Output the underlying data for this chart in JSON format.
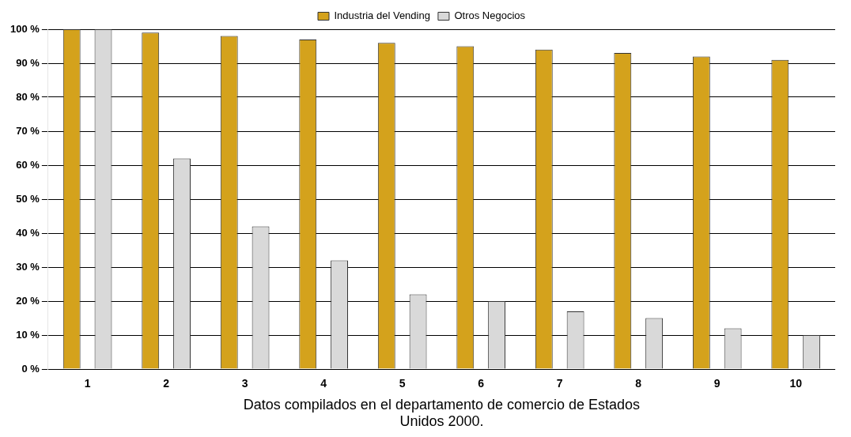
{
  "chart_data": {
    "type": "bar",
    "xlabel": "Datos compilados en el departamento de comercio de Estados Unidos 2000.",
    "categories": [
      "1",
      "2",
      "3",
      "4",
      "5",
      "6",
      "7",
      "8",
      "9",
      "10"
    ],
    "series": [
      {
        "name": "Industria del Vending",
        "color": "#d4a21c",
        "values": [
          100,
          99,
          98,
          97,
          96,
          95,
          94,
          93,
          92,
          91
        ]
      },
      {
        "name": "Otros Negocios",
        "color": "#d9d9d9",
        "values": [
          100,
          62,
          42,
          32,
          22,
          20,
          17,
          15,
          12,
          10
        ]
      }
    ],
    "ylim": [
      0,
      100
    ],
    "yticks": [
      {
        "value": 0,
        "label": "0 %"
      },
      {
        "value": 10,
        "label": "10 %"
      },
      {
        "value": 20,
        "label": "20 %"
      },
      {
        "value": 30,
        "label": "30 %"
      },
      {
        "value": 40,
        "label": "40 %"
      },
      {
        "value": 50,
        "label": "50 %"
      },
      {
        "value": 60,
        "label": "60 %"
      },
      {
        "value": 70,
        "label": "70 %"
      },
      {
        "value": 80,
        "label": "80 %"
      },
      {
        "value": 90,
        "label": "90 %"
      },
      {
        "value": 100,
        "label": "100 %"
      }
    ],
    "grid": "y",
    "legend": "top"
  }
}
